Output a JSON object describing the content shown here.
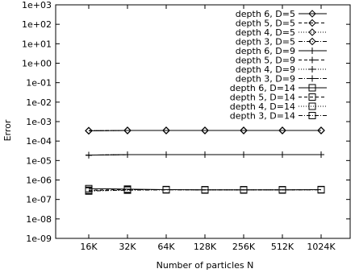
{
  "chart_data": {
    "type": "line",
    "xlabel": "Number of particles N",
    "ylabel": "Error",
    "categories": [
      "16K",
      "32K",
      "64K",
      "128K",
      "256K",
      "512K",
      "1024K"
    ],
    "y_scale": "log",
    "ylim": [
      1e-09,
      1000
    ],
    "y_ticks": [
      "1e-09",
      "1e-08",
      "1e-07",
      "1e-06",
      "1e-05",
      "1e-04",
      "1e-03",
      "1e-02",
      "1e-01",
      "1e+00",
      "1e+01",
      "1e+02",
      "1e+03"
    ],
    "grid": false,
    "legend_position": "top-right",
    "series": [
      {
        "name": "depth 6, D=5",
        "marker": "diamond",
        "dash": "solid",
        "values": [
          0.00034,
          0.00035,
          0.00035,
          0.00035,
          0.00035,
          0.00035,
          0.00035
        ]
      },
      {
        "name": "depth 5, D=5",
        "marker": "diamond",
        "dash": "dashed",
        "values": [
          0.00034,
          0.00035,
          0.00035,
          0.00035,
          0.00035,
          0.00035,
          0.00035
        ]
      },
      {
        "name": "depth 4, D=5",
        "marker": "diamond",
        "dash": "dotted",
        "values": [
          0.00034,
          0.00035,
          0.00035,
          0.00035,
          0.00035,
          0.00035,
          0.00035
        ]
      },
      {
        "name": "depth 3, D=5",
        "marker": "diamond",
        "dash": "dashdot",
        "values": [
          0.00034,
          0.00035,
          0.00035,
          0.00035,
          0.00035,
          0.00035,
          0.00035
        ]
      },
      {
        "name": "depth 6, D=9",
        "marker": "plus",
        "dash": "solid",
        "values": [
          1.9e-05,
          2e-05,
          2e-05,
          2e-05,
          2e-05,
          2e-05,
          2e-05
        ]
      },
      {
        "name": "depth 5, D=9",
        "marker": "plus",
        "dash": "dashed",
        "values": [
          1.9e-05,
          2e-05,
          2e-05,
          2e-05,
          2e-05,
          2e-05,
          2e-05
        ]
      },
      {
        "name": "depth 4, D=9",
        "marker": "plus",
        "dash": "dotted",
        "values": [
          1.9e-05,
          2e-05,
          2e-05,
          2e-05,
          2e-05,
          2e-05,
          2e-05
        ]
      },
      {
        "name": "depth 3, D=9",
        "marker": "plus",
        "dash": "dashdot",
        "values": [
          1.9e-05,
          2e-05,
          2e-05,
          2e-05,
          2e-05,
          2e-05,
          2e-05
        ]
      },
      {
        "name": "depth 6, D=14",
        "marker": "square",
        "dash": "solid",
        "values": [
          3.6e-07,
          3.4e-07,
          3.2e-07,
          3.1e-07,
          3.1e-07,
          3.1e-07,
          3.2e-07
        ]
      },
      {
        "name": "depth 5, D=14",
        "marker": "square",
        "dash": "dashed",
        "values": [
          3e-07,
          3.2e-07,
          3.2e-07,
          3.1e-07,
          3.1e-07,
          3.1e-07,
          3.2e-07
        ]
      },
      {
        "name": "depth 4, D=14",
        "marker": "square",
        "dash": "dotted",
        "values": [
          2.8e-07,
          3.1e-07,
          3.2e-07,
          3.1e-07,
          3.1e-07,
          3.1e-07,
          3.2e-07
        ]
      },
      {
        "name": "depth 3, D=14",
        "marker": "square",
        "dash": "dashdot",
        "values": [
          2.7e-07,
          3e-07,
          3.1e-07,
          3.1e-07,
          3.1e-07,
          3.1e-07,
          3.1e-07
        ]
      }
    ]
  }
}
